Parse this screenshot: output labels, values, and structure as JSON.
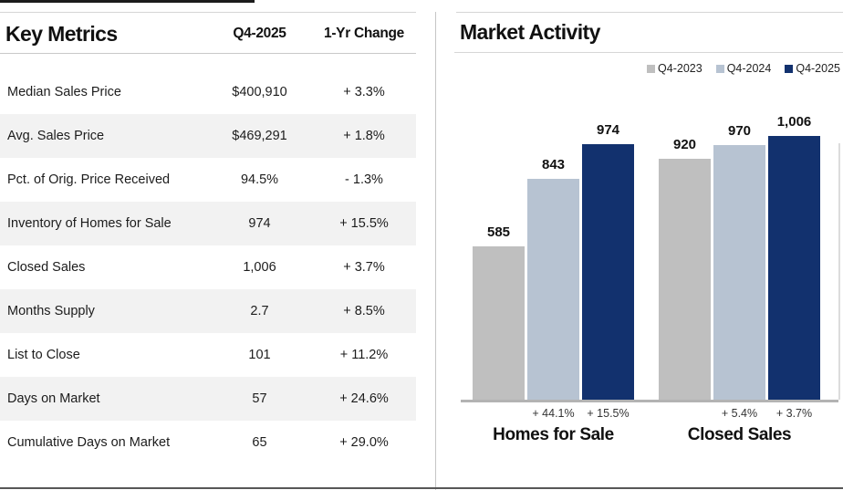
{
  "key_metrics": {
    "title": "Key Metrics",
    "col_value": "Q4-2025",
    "col_change": "1-Yr Change",
    "rows": [
      {
        "label": "Median Sales Price",
        "value": "$400,910",
        "change": "+ 3.3%"
      },
      {
        "label": "Avg. Sales Price",
        "value": "$469,291",
        "change": "+ 1.8%"
      },
      {
        "label": "Pct. of Orig. Price Received",
        "value": "94.5%",
        "change": "- 1.3%"
      },
      {
        "label": "Inventory of Homes for Sale",
        "value": "974",
        "change": "+ 15.5%"
      },
      {
        "label": "Closed Sales",
        "value": "1,006",
        "change": "+ 3.7%"
      },
      {
        "label": "Months Supply",
        "value": "2.7",
        "change": "+ 8.5%"
      },
      {
        "label": "List to Close",
        "value": "101",
        "change": "+ 11.2%"
      },
      {
        "label": "Days on Market",
        "value": "57",
        "change": "+ 24.6%"
      },
      {
        "label": "Cumulative Days on Market",
        "value": "65",
        "change": "+ 29.0%"
      }
    ]
  },
  "market_activity": {
    "title": "Market Activity"
  },
  "chart_data": {
    "type": "bar",
    "title": "Market Activity",
    "categories": [
      "Homes for Sale",
      "Closed Sales"
    ],
    "series": [
      {
        "name": "Q4-2023",
        "color": "#bfbfbf",
        "values": [
          585,
          920
        ]
      },
      {
        "name": "Q4-2024",
        "color": "#b7c3d2",
        "values": [
          843,
          970
        ]
      },
      {
        "name": "Q4-2025",
        "color": "#12316e",
        "values": [
          974,
          1006
        ]
      }
    ],
    "value_labels": [
      [
        "585",
        "843",
        "974"
      ],
      [
        "920",
        "970",
        "1,006"
      ]
    ],
    "pct_changes": [
      [
        "+ 44.1%",
        "+ 15.5%"
      ],
      [
        "+ 5.4%",
        "+ 3.7%"
      ]
    ],
    "ylim": [
      0,
      1040
    ],
    "grid": false,
    "legend_position": "top-right"
  },
  "colors": {
    "bar_gray": "#bfbfbf",
    "bar_lightblue": "#b7c3d2",
    "bar_navy": "#12316e",
    "zebra_row": "#f2f2f2",
    "axis": "#b3b3b3"
  }
}
